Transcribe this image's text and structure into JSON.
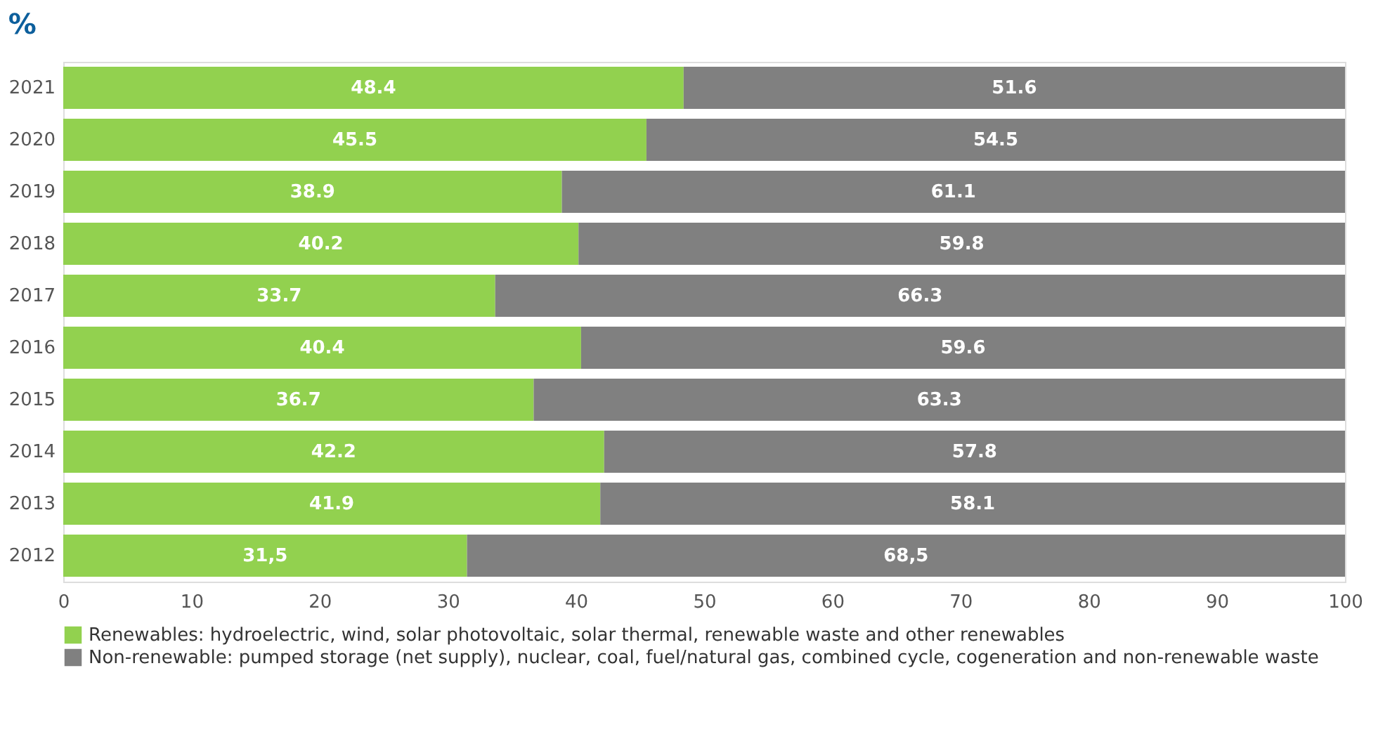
{
  "chart_data": {
    "type": "bar",
    "orientation": "horizontal",
    "stacked": true,
    "title": "%",
    "categories": [
      "2021",
      "2020",
      "2019",
      "2018",
      "2017",
      "2016",
      "2015",
      "2014",
      "2013",
      "2012"
    ],
    "series": [
      {
        "name": "Renewables: hydroelectric, wind, solar photovoltaic, solar thermal, renewable waste and other renewables",
        "color": "#92d14f",
        "values": [
          48.4,
          45.5,
          38.9,
          40.2,
          33.7,
          40.4,
          36.7,
          42.2,
          41.9,
          31.5
        ],
        "value_labels": [
          "48.4",
          "45.5",
          "38.9",
          "40.2",
          "33.7",
          "40.4",
          "36.7",
          "42.2",
          "41.9",
          "31,5"
        ]
      },
      {
        "name": "Non-renewable: pumped storage (net supply), nuclear, coal, fuel/natural gas, combined cycle, cogeneration and non-renewable waste",
        "color": "#808080",
        "values": [
          51.6,
          54.5,
          61.1,
          59.8,
          66.3,
          59.6,
          63.3,
          57.8,
          58.1,
          68.5
        ],
        "value_labels": [
          "51.6",
          "54.5",
          "61.1",
          "59.8",
          "66.3",
          "59.6",
          "63.3",
          "57.8",
          "58.1",
          "68,5"
        ]
      }
    ],
    "xlim": [
      0,
      100
    ],
    "xticks": [
      0,
      10,
      20,
      30,
      40,
      50,
      60,
      70,
      80,
      90,
      100
    ],
    "grid": false,
    "legend": "bottom"
  }
}
